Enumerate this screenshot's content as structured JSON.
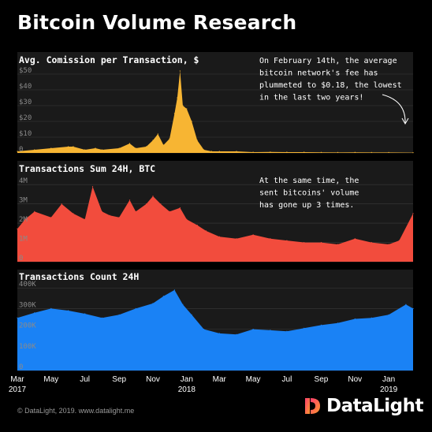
{
  "header": {
    "title": "Bitcoin Volume Research"
  },
  "footer": {
    "credit": "© DataLight, 2019. www.datalight.me",
    "logo_text": "DataLight"
  },
  "colors": {
    "background": "#000000",
    "panel": "#1a1a1a",
    "commission": "#f7b533",
    "sum": "#f24c3d",
    "count": "#1a82f5",
    "logo_gradient": [
      "#ff3d6e",
      "#ff9a2e"
    ]
  },
  "annotations": {
    "commission_note": [
      "On February 14th, the average",
      "bitcoin network's fee has",
      "plummeted to $0.18, the lowest",
      "in the last two years!"
    ],
    "sum_note": [
      "At the same time, the",
      "sent bitcoins' volume",
      "has gone up 3 times."
    ]
  },
  "chart_data": [
    {
      "type": "area",
      "title": "Avg. Comission per Transaction, $",
      "ylim": [
        0,
        55
      ],
      "y_ticks": [
        0,
        10,
        20,
        30,
        40,
        50
      ],
      "y_tick_labels": [
        "0",
        "$10",
        "$20",
        "$30",
        "$40",
        "$50"
      ],
      "x": [
        "2017-03-01",
        "2017-04-01",
        "2017-05-01",
        "2017-06-01",
        "2017-06-10",
        "2017-07-01",
        "2017-07-20",
        "2017-08-01",
        "2017-09-01",
        "2017-09-20",
        "2017-10-01",
        "2017-10-20",
        "2017-11-01",
        "2017-11-10",
        "2017-11-20",
        "2017-12-01",
        "2017-12-10",
        "2017-12-15",
        "2017-12-20",
        "2017-12-25",
        "2018-01-01",
        "2018-01-10",
        "2018-01-20",
        "2018-02-01",
        "2018-02-15",
        "2018-03-01",
        "2018-04-01",
        "2018-05-01",
        "2018-06-01",
        "2018-07-01",
        "2018-08-01",
        "2018-09-01",
        "2018-10-01",
        "2018-11-01",
        "2018-12-01",
        "2019-01-01",
        "2019-02-14"
      ],
      "values": [
        1,
        2,
        3,
        4,
        4,
        2,
        3,
        2,
        3,
        6,
        3,
        4,
        8,
        12,
        5,
        9,
        25,
        35,
        52,
        30,
        28,
        20,
        8,
        2,
        1,
        1,
        1,
        0.5,
        0.6,
        0.5,
        0.5,
        0.4,
        0.3,
        0.4,
        0.3,
        0.3,
        0.18
      ]
    },
    {
      "type": "area",
      "title": "Transactions Sum 24H, BTC",
      "ylim": [
        0,
        4500000
      ],
      "y_ticks": [
        0,
        1000000,
        2000000,
        3000000,
        4000000
      ],
      "y_tick_labels": [
        "0",
        "1M",
        "2M",
        "3M",
        "4M"
      ],
      "x": [
        "2017-03-01",
        "2017-03-15",
        "2017-04-01",
        "2017-05-01",
        "2017-05-20",
        "2017-06-10",
        "2017-07-01",
        "2017-07-15",
        "2017-08-01",
        "2017-08-15",
        "2017-09-01",
        "2017-09-20",
        "2017-10-01",
        "2017-10-20",
        "2017-11-01",
        "2017-11-15",
        "2017-12-01",
        "2017-12-20",
        "2018-01-01",
        "2018-01-20",
        "2018-02-05",
        "2018-03-01",
        "2018-04-01",
        "2018-05-01",
        "2018-06-01",
        "2018-07-01",
        "2018-08-01",
        "2018-09-01",
        "2018-10-01",
        "2018-11-01",
        "2018-12-01",
        "2019-01-01",
        "2019-01-20",
        "2019-02-14"
      ],
      "values": [
        1700000,
        2200000,
        2600000,
        2300000,
        3000000,
        2500000,
        2200000,
        3900000,
        2600000,
        2400000,
        2300000,
        3200000,
        2600000,
        3000000,
        3400000,
        3000000,
        2600000,
        2800000,
        2200000,
        1900000,
        1600000,
        1300000,
        1200000,
        1400000,
        1200000,
        1100000,
        1000000,
        1000000,
        900000,
        1200000,
        1000000,
        900000,
        1100000,
        2500000
      ]
    },
    {
      "type": "area",
      "title": "Transactions Count 24H",
      "ylim": [
        0,
        420000
      ],
      "y_ticks": [
        0,
        100000,
        200000,
        300000,
        400000
      ],
      "y_tick_labels": [
        "0",
        "100K",
        "200K",
        "300K",
        "400K"
      ],
      "x": [
        "2017-03-01",
        "2017-04-01",
        "2017-05-01",
        "2017-06-01",
        "2017-07-01",
        "2017-08-01",
        "2017-09-01",
        "2017-10-01",
        "2017-11-01",
        "2017-11-20",
        "2017-12-10",
        "2017-12-25",
        "2018-01-10",
        "2018-02-01",
        "2018-03-01",
        "2018-04-01",
        "2018-05-01",
        "2018-06-01",
        "2018-07-01",
        "2018-08-01",
        "2018-09-01",
        "2018-10-01",
        "2018-11-01",
        "2018-12-01",
        "2019-01-01",
        "2019-02-01",
        "2019-02-14"
      ],
      "values": [
        255000,
        280000,
        300000,
        290000,
        275000,
        255000,
        270000,
        300000,
        325000,
        360000,
        390000,
        320000,
        270000,
        200000,
        180000,
        175000,
        200000,
        195000,
        190000,
        205000,
        220000,
        230000,
        250000,
        255000,
        270000,
        320000,
        300000
      ]
    }
  ],
  "x_axis": {
    "ticks": [
      {
        "date": "2017-03-01",
        "label": "Mar",
        "year": "2017"
      },
      {
        "date": "2017-05-01",
        "label": "May",
        "year": ""
      },
      {
        "date": "2017-07-01",
        "label": "Jul",
        "year": ""
      },
      {
        "date": "2017-09-01",
        "label": "Sep",
        "year": ""
      },
      {
        "date": "2017-11-01",
        "label": "Nov",
        "year": ""
      },
      {
        "date": "2018-01-01",
        "label": "Jan",
        "year": "2018"
      },
      {
        "date": "2018-03-01",
        "label": "Mar",
        "year": ""
      },
      {
        "date": "2018-05-01",
        "label": "May",
        "year": ""
      },
      {
        "date": "2018-07-01",
        "label": "Jul",
        "year": ""
      },
      {
        "date": "2018-09-01",
        "label": "Sep",
        "year": ""
      },
      {
        "date": "2018-11-01",
        "label": "Nov",
        "year": ""
      },
      {
        "date": "2019-01-01",
        "label": "Jan",
        "year": "2019"
      }
    ],
    "range": [
      "2017-03-01",
      "2019-02-14"
    ]
  }
}
